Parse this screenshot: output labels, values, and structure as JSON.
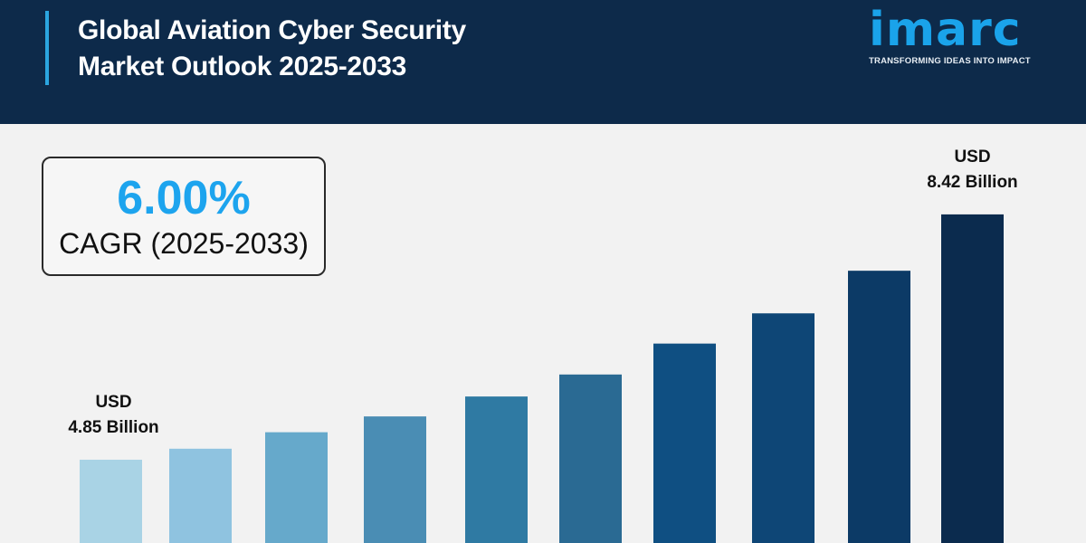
{
  "header": {
    "title_line1": "Global Aviation Cyber Security",
    "title_line2": "Market Outlook 2025-2033",
    "logo_text": "imarc",
    "logo_tagline": "TRANSFORMING IDEAS INTO IMPACT"
  },
  "cagr": {
    "value": "6.00%",
    "label": "CAGR (2025-2033)"
  },
  "colors": {
    "header_bg": "#0d2a4a",
    "accent": "#1da4ee",
    "background": "#f2f2f2"
  },
  "chart_data": {
    "type": "bar",
    "title": "",
    "xlabel": "",
    "ylabel": "",
    "grid": false,
    "values": [
      4.85,
      5.01,
      5.25,
      5.48,
      5.77,
      6.09,
      6.54,
      6.98,
      7.6,
      8.42
    ],
    "colors": [
      "#a9d3e5",
      "#8fc3e0",
      "#66a9cb",
      "#4a8db4",
      "#2f7aa3",
      "#2a6a93",
      "#0f4f82",
      "#0e4676",
      "#0c3a66",
      "#0b2b4e"
    ],
    "annotations": [
      {
        "bar_index": 0,
        "line1": "USD",
        "line2": "4.85 Billion"
      },
      {
        "bar_index": 9,
        "line1": "USD",
        "line2": "8.42 Billion"
      }
    ]
  }
}
